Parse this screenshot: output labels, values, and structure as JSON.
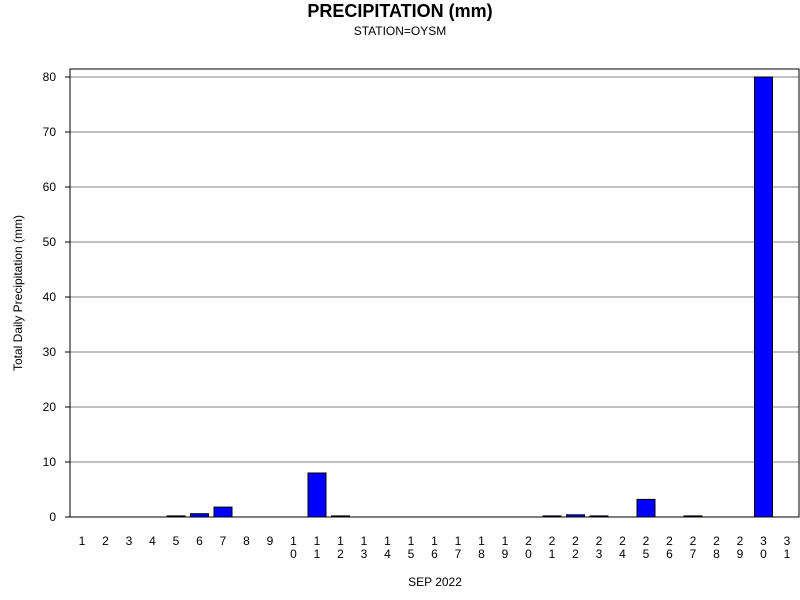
{
  "chart_data": {
    "type": "bar",
    "title": "PRECIPITATION (mm)",
    "subtitle": "STATION=OYSM",
    "xlabel": "SEP 2022",
    "ylabel": "Total Daily Precipitation (mm)",
    "ylim": [
      0,
      80
    ],
    "yticks": [
      0,
      10,
      20,
      30,
      40,
      50,
      60,
      70,
      80
    ],
    "grid": true,
    "bar_color": "#0000ff",
    "categories": [
      "1",
      "2",
      "3",
      "4",
      "5",
      "6",
      "7",
      "8",
      "9",
      "10",
      "11",
      "12",
      "13",
      "14",
      "15",
      "16",
      "17",
      "18",
      "19",
      "20",
      "21",
      "22",
      "23",
      "24",
      "25",
      "26",
      "27",
      "28",
      "29",
      "30",
      "31"
    ],
    "values": [
      0,
      0,
      0,
      0,
      0.2,
      0.6,
      1.8,
      0,
      0,
      0,
      8.0,
      0.2,
      0,
      0,
      0,
      0,
      0,
      0,
      0,
      0,
      0.2,
      0.4,
      0.2,
      0,
      3.2,
      0,
      0.2,
      0,
      0,
      80.0,
      null
    ]
  }
}
